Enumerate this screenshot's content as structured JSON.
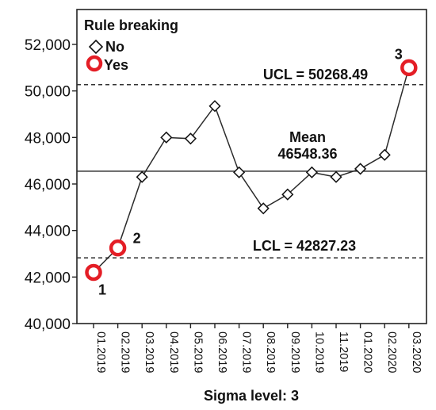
{
  "chart_data": {
    "type": "line",
    "title": "",
    "xlabel": "Sigma level: 3",
    "ylabel": "",
    "ylim": [
      40000,
      53500
    ],
    "yticks": [
      40000,
      42000,
      44000,
      46000,
      48000,
      50000,
      52000
    ],
    "ytick_labels": [
      "40,000",
      "42,000",
      "44,000",
      "46,000",
      "48,000",
      "50,000",
      "52,000"
    ],
    "categories": [
      "01.2019",
      "02.2019",
      "03.2019",
      "04.2019",
      "05.2019",
      "06.2019",
      "07.2019",
      "08.2019",
      "09.2019",
      "10.2019",
      "11.2019",
      "01.2020",
      "02.2020",
      "03.2020"
    ],
    "values": [
      42200,
      43250,
      46300,
      48000,
      47950,
      49350,
      46500,
      44950,
      45550,
      46500,
      46300,
      46650,
      47250,
      51000
    ],
    "rule_breaking": [
      "Yes",
      "Yes",
      "No",
      "No",
      "No",
      "No",
      "No",
      "No",
      "No",
      "No",
      "No",
      "No",
      "No",
      "Yes"
    ],
    "point_labels": [
      "1",
      "2",
      "",
      "",
      "",
      "",
      "",
      "",
      "",
      "",
      "",
      "",
      "",
      "3"
    ],
    "legend": {
      "title": "Rule breaking",
      "placement": "top-left",
      "items": [
        {
          "label": "No",
          "marker": "diamond"
        },
        {
          "label": "Yes",
          "marker": "red-circle"
        }
      ]
    },
    "reference_lines": [
      {
        "name": "UCL",
        "value": 50268.49,
        "label": "UCL = 50268.49",
        "style": "dashed"
      },
      {
        "name": "Mean",
        "value": 46548.36,
        "label_line1": "Mean",
        "label_line2": "46548.36",
        "style": "solid"
      },
      {
        "name": "LCL",
        "value": 42827.23,
        "label": "LCL = 42827.23",
        "style": "dashed"
      }
    ],
    "grid": false,
    "colors": {
      "line": "#2b2b2b",
      "marker_no": "#111111",
      "marker_yes": "#e41e26",
      "reference": "#333333"
    }
  }
}
